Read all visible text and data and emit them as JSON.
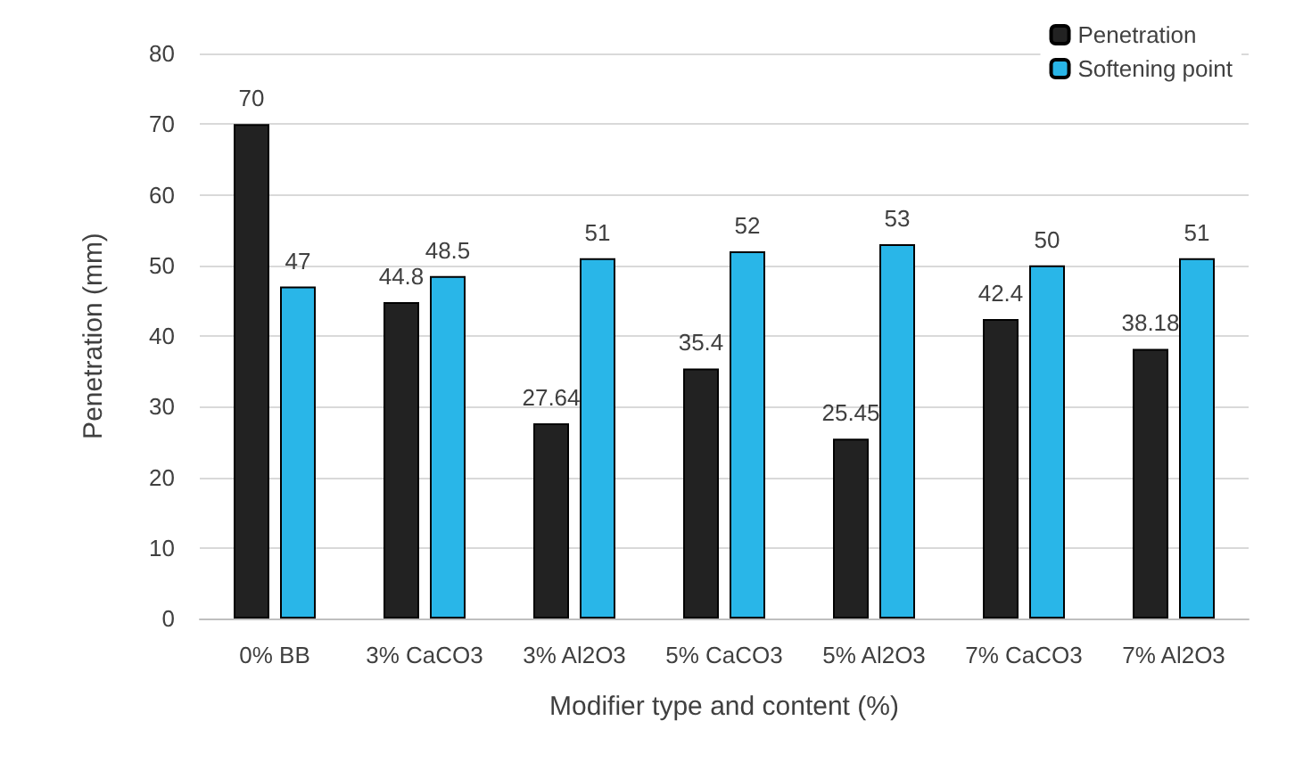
{
  "chart_data": {
    "type": "bar",
    "xlabel": "Modifier type and content (%)",
    "ylabel": "Penetration (mm)",
    "categories": [
      "0% BB",
      "3% CaCO3",
      "3% Al2O3",
      "5% CaCO3",
      "5% Al2O3",
      "7% CaCO3",
      "7% Al2O3"
    ],
    "series": [
      {
        "name": "Penetration",
        "color": "#222222",
        "values": [
          70,
          44.8,
          27.64,
          35.4,
          25.45,
          42.4,
          38.18
        ]
      },
      {
        "name": "Softening point",
        "color": "#29b6e8",
        "values": [
          47,
          48.5,
          51,
          52,
          53,
          50,
          51
        ]
      }
    ],
    "ylim": [
      0,
      80
    ],
    "yticks": [
      0,
      10,
      20,
      30,
      40,
      50,
      60,
      70,
      80
    ],
    "grid": "y",
    "legend": "top right",
    "data_labels": true
  }
}
